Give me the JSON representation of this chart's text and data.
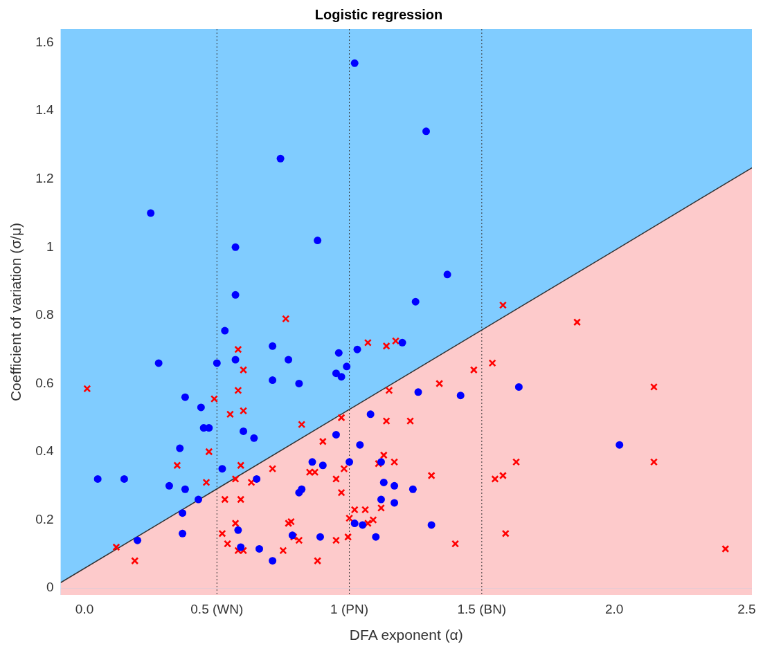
{
  "chart_data": {
    "type": "scatter",
    "title": "Logistic regression",
    "xlabel": "DFA exponent (α)",
    "ylabel": "Coefficient of variation (σ/μ)",
    "xlim": [
      -0.09,
      2.52
    ],
    "ylim": [
      -0.02,
      1.64
    ],
    "xticks": [
      {
        "value": 0,
        "label": "0.0"
      },
      {
        "value": 0.5,
        "label": "0.5 (WN)"
      },
      {
        "value": 1,
        "label": "1 (PN)"
      },
      {
        "value": 1.5,
        "label": "1.5 (BN)"
      },
      {
        "value": 2,
        "label": "2.0"
      },
      2.5
    ],
    "yticks": [
      0,
      0.2,
      0.4,
      0.6,
      0.8,
      1,
      1.2,
      1.4,
      1.6
    ],
    "bands": [
      {
        "axis": "y",
        "from": -0.02,
        "to": 1.64,
        "color": "#80ccff"
      },
      {
        "axis": "y",
        "from": -0.02,
        "to": 0,
        "color": "#fdcacb"
      }
    ],
    "ref_lines": [
      {
        "axis": "x",
        "value": 0.5,
        "color": "#333333",
        "line_style": "dotted"
      },
      {
        "axis": "x",
        "value": 1,
        "color": "#333333",
        "line_style": "dotted"
      },
      {
        "axis": "x",
        "value": 1.5,
        "color": "#333333",
        "line_style": "dotted"
      }
    ],
    "series": [
      {
        "type": "area",
        "color": "#fdcacb",
        "x": [
          -0.09,
          0.5,
          1,
          1.5,
          2,
          2.52
        ],
        "values": [
          0.016,
          0.291,
          0.524,
          0.757,
          0.99,
          1.233
        ]
      },
      {
        "type": "scatter",
        "color": "#0000ff",
        "marker": "circle",
        "x": [
          1.02,
          1.29,
          0.74,
          0.25,
          0.88,
          0.57,
          1.37,
          1.25,
          0.57,
          0.53,
          0.71,
          0.77,
          0.28,
          0.5,
          0.57,
          0.71,
          0.38,
          0.44,
          0.45,
          0.47,
          0.6,
          0.64,
          0.36,
          0.52,
          0.05,
          0.15,
          0.65,
          0.32,
          0.38,
          0.43,
          0.37,
          0.58,
          0.37,
          0.2,
          0.59,
          0.66,
          0.71,
          0.96,
          1.03,
          1.2,
          0.99,
          0.95,
          0.97,
          0.81,
          1.26,
          1.42,
          1.08,
          0.95,
          1.04,
          0.86,
          0.9,
          1.0,
          1.12,
          0.82,
          0.81,
          1.13,
          1.17,
          1.24,
          1.12,
          1.17,
          1.02,
          1.05,
          1.31,
          0.785,
          0.89,
          1.1,
          1.64,
          2.02
        ],
        "values": [
          1.54,
          1.34,
          1.26,
          1.1,
          1.02,
          1.0,
          0.92,
          0.84,
          0.86,
          0.755,
          0.71,
          0.67,
          0.66,
          0.66,
          0.67,
          0.61,
          0.56,
          0.53,
          0.47,
          0.47,
          0.46,
          0.44,
          0.41,
          0.35,
          0.32,
          0.32,
          0.32,
          0.3,
          0.29,
          0.26,
          0.22,
          0.17,
          0.16,
          0.14,
          0.12,
          0.115,
          0.08,
          0.69,
          0.7,
          0.72,
          0.65,
          0.63,
          0.62,
          0.6,
          0.575,
          0.565,
          0.51,
          0.45,
          0.42,
          0.37,
          0.36,
          0.37,
          0.37,
          0.29,
          0.28,
          0.31,
          0.3,
          0.29,
          0.26,
          0.25,
          0.19,
          0.185,
          0.185,
          0.155,
          0.15,
          0.15,
          0.59,
          0.42
        ]
      },
      {
        "type": "scatter",
        "color": "#ff0000",
        "marker": "cross",
        "x": [
          0.76,
          1.58,
          1.86,
          0.58,
          0.6,
          0.01,
          0.58,
          0.49,
          0.55,
          0.6,
          0.47,
          0.35,
          0.59,
          0.71,
          0.57,
          0.63,
          0.46,
          0.53,
          0.59,
          0.57,
          0.52,
          0.54,
          0.12,
          0.58,
          0.6,
          0.75,
          0.19,
          0.77,
          0.78,
          0.79,
          0.81,
          1.07,
          1.14,
          1.175,
          1.47,
          1.54,
          1.34,
          1.15,
          0.97,
          1.14,
          1.23,
          0.82,
          0.9,
          1.13,
          1.11,
          1.17,
          0.85,
          0.87,
          0.98,
          1.31,
          0.95,
          0.97,
          1.12,
          1.02,
          1.06,
          1.0,
          1.09,
          1.07,
          0.95,
          0.995,
          0.88,
          1.4,
          1.55,
          1.58,
          1.59,
          2.15,
          1.63,
          2.15,
          2.42
        ],
        "values": [
          0.79,
          0.83,
          0.78,
          0.7,
          0.64,
          0.585,
          0.58,
          0.555,
          0.51,
          0.52,
          0.4,
          0.36,
          0.36,
          0.35,
          0.32,
          0.31,
          0.31,
          0.26,
          0.26,
          0.19,
          0.16,
          0.13,
          0.12,
          0.11,
          0.11,
          0.11,
          0.08,
          0.19,
          0.195,
          0.15,
          0.14,
          0.72,
          0.71,
          0.725,
          0.64,
          0.66,
          0.6,
          0.58,
          0.5,
          0.49,
          0.49,
          0.48,
          0.43,
          0.39,
          0.365,
          0.37,
          0.34,
          0.34,
          0.35,
          0.33,
          0.32,
          0.28,
          0.235,
          0.23,
          0.23,
          0.205,
          0.2,
          0.19,
          0.14,
          0.15,
          0.08,
          0.13,
          0.32,
          0.33,
          0.16,
          0.59,
          0.37,
          0.37,
          0.115
        ]
      }
    ]
  }
}
